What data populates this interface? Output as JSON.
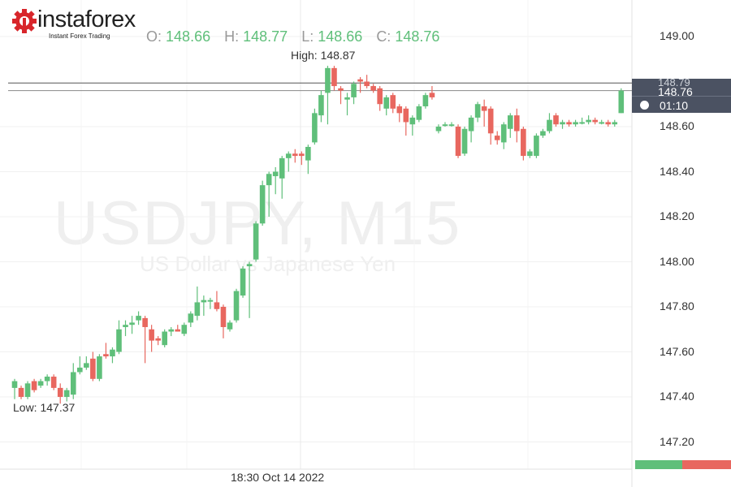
{
  "brand": {
    "name": "instaforex",
    "tagline": "Instant Forex Trading",
    "color": "#d8262b"
  },
  "ohlc": {
    "o_label": "O:",
    "o": "148.66",
    "h_label": "H:",
    "h": "148.77",
    "l_label": "L:",
    "l": "148.66",
    "c_label": "C:",
    "c": "148.76"
  },
  "markers": {
    "high": "High: 148.87",
    "low": "Low: 147.37"
  },
  "watermark": {
    "symbol": "USDJPY, M15",
    "description": "US Dollar vs Japanese Yen"
  },
  "price_box": {
    "hidden_price": "148.79",
    "current_price": "148.76",
    "countdown": "01:10"
  },
  "colors": {
    "up": "#5fbf7a",
    "down": "#e8675f",
    "price_box": "#4b5262"
  },
  "chart_data": {
    "type": "candlestick",
    "symbol": "USDJPY",
    "timeframe": "M15",
    "x_tick_labels": [
      "18:30 Oct 14 2022"
    ],
    "x_tick_candle_index": 44,
    "y_ticks": [
      "149.00",
      "148.60",
      "148.40",
      "148.20",
      "148.00",
      "147.80",
      "147.60",
      "147.40",
      "147.20"
    ],
    "ylim": [
      147.1,
      149.05
    ],
    "grid": true,
    "price_lines": [
      148.79,
      148.76
    ],
    "high": 148.87,
    "low": 147.37,
    "ohlc": [
      [
        147.44,
        147.48,
        147.39,
        147.47
      ],
      [
        147.44,
        147.45,
        147.39,
        147.4
      ],
      [
        147.4,
        147.47,
        147.39,
        147.46
      ],
      [
        147.47,
        147.48,
        147.42,
        147.43
      ],
      [
        147.45,
        147.48,
        147.44,
        147.47
      ],
      [
        147.47,
        147.5,
        147.45,
        147.49
      ],
      [
        147.49,
        147.5,
        147.43,
        147.44
      ],
      [
        147.44,
        147.46,
        147.37,
        147.4
      ],
      [
        147.4,
        147.44,
        147.38,
        147.43
      ],
      [
        147.41,
        147.55,
        147.39,
        147.51
      ],
      [
        147.51,
        147.58,
        147.5,
        147.53
      ],
      [
        147.53,
        147.58,
        147.52,
        147.55
      ],
      [
        147.57,
        147.6,
        147.47,
        147.48
      ],
      [
        147.48,
        147.59,
        147.47,
        147.58
      ],
      [
        147.59,
        147.64,
        147.57,
        147.58
      ],
      [
        147.58,
        147.62,
        147.55,
        147.61
      ],
      [
        147.6,
        147.74,
        147.59,
        147.7
      ],
      [
        147.71,
        147.74,
        147.67,
        147.72
      ],
      [
        147.72,
        147.76,
        147.68,
        147.73
      ],
      [
        147.74,
        147.78,
        147.72,
        147.76
      ],
      [
        147.75,
        147.76,
        147.55,
        147.71
      ],
      [
        147.7,
        147.72,
        147.6,
        147.65
      ],
      [
        147.66,
        147.67,
        147.63,
        147.65
      ],
      [
        147.63,
        147.7,
        147.62,
        147.69
      ],
      [
        147.69,
        147.71,
        147.67,
        147.7
      ],
      [
        147.7,
        147.72,
        147.69,
        147.69
      ],
      [
        147.68,
        147.73,
        147.67,
        147.72
      ],
      [
        147.73,
        147.78,
        147.71,
        147.77
      ],
      [
        147.76,
        147.89,
        147.74,
        147.82
      ],
      [
        147.82,
        147.85,
        147.76,
        147.83
      ],
      [
        147.83,
        147.84,
        147.79,
        147.83
      ],
      [
        147.82,
        147.87,
        147.78,
        147.79
      ],
      [
        147.8,
        147.81,
        147.66,
        147.71
      ],
      [
        147.7,
        147.74,
        147.69,
        147.73
      ],
      [
        147.74,
        147.88,
        147.73,
        147.87
      ],
      [
        147.85,
        147.98,
        147.84,
        147.97
      ],
      [
        147.98,
        148.0,
        147.75,
        147.99
      ],
      [
        148.01,
        148.18,
        148.0,
        148.17
      ],
      [
        148.17,
        148.36,
        148.16,
        148.34
      ],
      [
        148.34,
        148.4,
        148.2,
        148.39
      ],
      [
        148.38,
        148.42,
        148.3,
        148.4
      ],
      [
        148.37,
        148.47,
        148.28,
        148.46
      ],
      [
        148.46,
        148.49,
        148.4,
        148.48
      ],
      [
        148.48,
        148.5,
        148.44,
        148.47
      ],
      [
        148.48,
        148.49,
        148.43,
        148.47
      ],
      [
        148.45,
        148.52,
        148.39,
        148.51
      ],
      [
        148.53,
        148.68,
        148.52,
        148.66
      ],
      [
        148.65,
        148.76,
        148.62,
        148.74
      ],
      [
        148.75,
        148.87,
        148.61,
        148.86
      ],
      [
        148.86,
        148.87,
        148.76,
        148.78
      ],
      [
        148.77,
        148.78,
        148.7,
        148.76
      ],
      [
        148.72,
        148.75,
        148.65,
        148.73
      ],
      [
        148.73,
        148.8,
        148.7,
        148.79
      ],
      [
        148.81,
        148.82,
        148.75,
        148.8
      ],
      [
        148.8,
        148.83,
        148.77,
        148.78
      ],
      [
        148.78,
        148.79,
        148.75,
        148.76
      ],
      [
        148.77,
        148.78,
        148.67,
        148.7
      ],
      [
        148.68,
        148.74,
        148.65,
        148.73
      ],
      [
        148.74,
        148.75,
        148.66,
        148.68
      ],
      [
        148.69,
        148.7,
        148.62,
        148.66
      ],
      [
        148.68,
        148.69,
        148.56,
        148.62
      ],
      [
        148.61,
        148.65,
        148.56,
        148.64
      ],
      [
        148.63,
        148.7,
        148.62,
        148.69
      ],
      [
        148.69,
        148.75,
        148.68,
        148.74
      ],
      [
        148.75,
        148.78,
        148.72,
        148.73
      ],
      [
        148.58,
        148.61,
        148.57,
        148.6
      ],
      [
        148.61,
        148.62,
        148.6,
        148.61
      ],
      [
        148.61,
        148.62,
        148.6,
        148.61
      ],
      [
        148.6,
        148.61,
        148.46,
        148.47
      ],
      [
        148.48,
        148.6,
        148.47,
        148.59
      ],
      [
        148.58,
        148.65,
        148.53,
        148.64
      ],
      [
        148.64,
        148.71,
        148.62,
        148.7
      ],
      [
        148.69,
        148.72,
        148.6,
        148.67
      ],
      [
        148.68,
        148.69,
        148.52,
        148.57
      ],
      [
        148.56,
        148.58,
        148.52,
        148.54
      ],
      [
        148.53,
        148.62,
        148.5,
        148.61
      ],
      [
        148.59,
        148.66,
        148.55,
        148.65
      ],
      [
        148.65,
        148.68,
        148.53,
        148.58
      ],
      [
        148.59,
        148.6,
        148.45,
        148.47
      ],
      [
        148.47,
        148.5,
        148.46,
        148.49
      ],
      [
        148.47,
        148.57,
        148.46,
        148.56
      ],
      [
        148.56,
        148.59,
        148.55,
        148.58
      ],
      [
        148.58,
        148.66,
        148.57,
        148.63
      ],
      [
        148.65,
        148.66,
        148.6,
        148.61
      ],
      [
        148.61,
        148.63,
        148.59,
        148.62
      ],
      [
        148.62,
        148.63,
        148.6,
        148.61
      ],
      [
        148.61,
        148.63,
        148.6,
        148.62
      ],
      [
        148.62,
        148.64,
        148.61,
        148.62
      ],
      [
        148.62,
        148.65,
        148.61,
        148.63
      ],
      [
        148.63,
        148.64,
        148.61,
        148.62
      ],
      [
        148.62,
        148.63,
        148.61,
        148.62
      ],
      [
        148.62,
        148.63,
        148.6,
        148.61
      ],
      [
        148.61,
        148.63,
        148.6,
        148.62
      ],
      [
        148.66,
        148.77,
        148.66,
        148.76
      ]
    ]
  }
}
